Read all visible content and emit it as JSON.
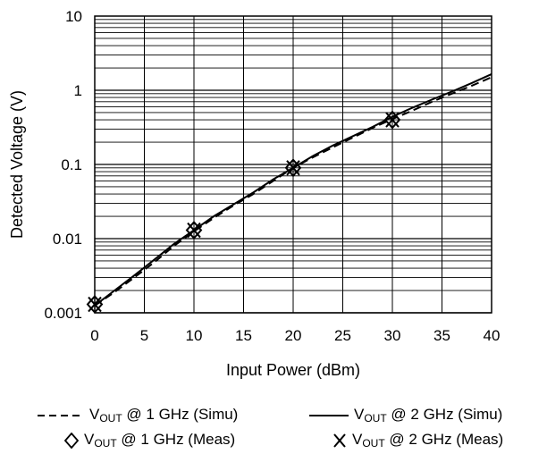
{
  "chart_data": {
    "type": "line",
    "xlabel": "Input Power (dBm)",
    "ylabel": "Detected Voltage (V)",
    "xlim": [
      0,
      40
    ],
    "ylim": [
      0.001,
      10
    ],
    "yscale": "log",
    "grid": true,
    "x_ticks": [
      "0",
      "5",
      "10",
      "15",
      "20",
      "25",
      "30",
      "35",
      "40"
    ],
    "y_ticks": [
      "0.001",
      "0.01",
      "0.1",
      "1",
      "10"
    ],
    "series": [
      {
        "name": "VOUT @ 1 GHz (Simu)",
        "name_main": "V",
        "name_sub": "OUT",
        "name_rest": " @ 1 GHz (Simu)",
        "style": "dashed",
        "x": [
          0,
          2,
          4,
          6,
          8,
          10,
          12,
          14,
          16,
          18,
          20,
          22,
          24,
          26,
          28,
          30,
          32,
          34,
          36,
          38,
          40
        ],
        "y": [
          0.00125,
          0.0019,
          0.003,
          0.0048,
          0.008,
          0.0125,
          0.019,
          0.028,
          0.04,
          0.06,
          0.09,
          0.125,
          0.17,
          0.23,
          0.31,
          0.41,
          0.53,
          0.7,
          0.9,
          1.15,
          1.5
        ]
      },
      {
        "name": "VOUT @ 2 GHz (Simu)",
        "name_main": "V",
        "name_sub": "OUT",
        "name_rest": " @ 2 GHz (Simu)",
        "style": "solid",
        "x": [
          0,
          2,
          4,
          6,
          8,
          10,
          12,
          14,
          16,
          18,
          20,
          22,
          24,
          26,
          28,
          30,
          32,
          34,
          36,
          38,
          40
        ],
        "y": [
          0.00125,
          0.002,
          0.0032,
          0.0052,
          0.0085,
          0.013,
          0.02,
          0.029,
          0.042,
          0.063,
          0.09,
          0.13,
          0.18,
          0.24,
          0.32,
          0.44,
          0.58,
          0.75,
          0.96,
          1.25,
          1.65
        ]
      },
      {
        "name": "VOUT @ 1 GHz (Meas)",
        "name_main": "V",
        "name_sub": "OUT",
        "name_rest": " @ 1 GHz (Meas)",
        "style": "marker-diamond",
        "x": [
          0,
          10,
          20,
          30
        ],
        "y": [
          0.0013,
          0.013,
          0.09,
          0.4
        ]
      },
      {
        "name": "VOUT @ 2 GHz (Meas)",
        "name_main": "V",
        "name_sub": "OUT",
        "name_rest": " @ 2 GHz (Meas)",
        "style": "marker-x",
        "x": [
          0,
          10,
          20,
          30
        ],
        "y": [
          0.0013,
          0.013,
          0.09,
          0.4
        ]
      }
    ]
  }
}
